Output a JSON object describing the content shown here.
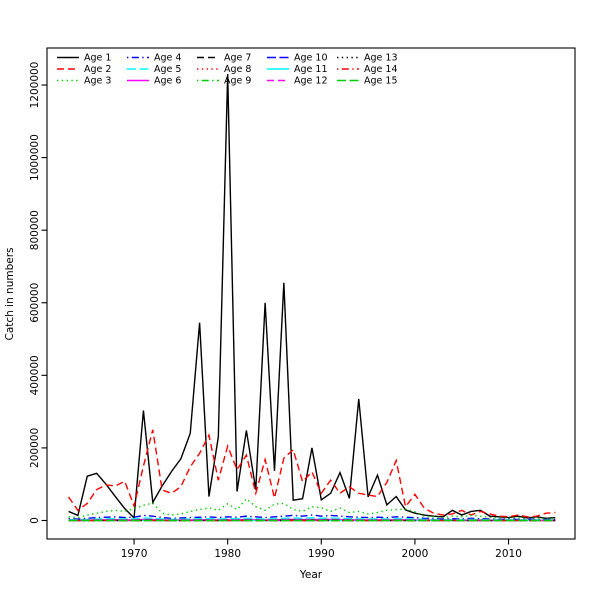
{
  "figure": {
    "title": "",
    "xlabel": "Year",
    "ylabel": "Catch in numbers"
  },
  "chart_data": {
    "type": "line",
    "title": "",
    "xlabel": "Year",
    "ylabel": "Catch in numbers",
    "xlim": [
      1960.7,
      2017.1
    ],
    "ylim": [
      -51000,
      1302000
    ],
    "xticks": [
      1970,
      1980,
      1990,
      2000,
      2010
    ],
    "yticks": [
      0,
      200000,
      400000,
      600000,
      800000,
      1000000,
      1200000
    ],
    "grid": false,
    "legend_position": "top-left",
    "legend_columns": 5,
    "legend_rows": 3,
    "x": [
      1963,
      1964,
      1965,
      1966,
      1967,
      1968,
      1969,
      1970,
      1971,
      1972,
      1973,
      1974,
      1975,
      1976,
      1977,
      1978,
      1979,
      1980,
      1981,
      1982,
      1983,
      1984,
      1985,
      1986,
      1987,
      1988,
      1989,
      1990,
      1991,
      1992,
      1993,
      1994,
      1995,
      1996,
      1997,
      1998,
      1999,
      2000,
      2001,
      2002,
      2003,
      2004,
      2005,
      2006,
      2007,
      2008,
      2009,
      2010,
      2011,
      2012,
      2013,
      2014,
      2015
    ],
    "series": [
      {
        "name": "Age 1",
        "color": "#000000",
        "linetype": "solid",
        "values": [
          25000,
          14000,
          122000,
          130000,
          100000,
          66000,
          33000,
          7000,
          303000,
          50000,
          95000,
          135000,
          170000,
          240000,
          545000,
          66000,
          230000,
          1230000,
          80000,
          248000,
          85000,
          600000,
          137000,
          655000,
          56000,
          60000,
          200000,
          57000,
          75000,
          132000,
          61000,
          335000,
          65000,
          125000,
          43000,
          66000,
          29000,
          20000,
          15000,
          12000,
          10000,
          28000,
          15000,
          25000,
          28000,
          12000,
          10000,
          8000,
          12000,
          7000,
          10000,
          6000,
          8000
        ]
      },
      {
        "name": "Age 2",
        "color": "#FF0000",
        "linetype": "dashed",
        "values": [
          65000,
          28000,
          47000,
          85000,
          98000,
          95000,
          108000,
          40000,
          150000,
          250000,
          84000,
          75000,
          93000,
          148000,
          185000,
          235000,
          111000,
          205000,
          140000,
          180000,
          75000,
          168000,
          62000,
          172000,
          195000,
          107000,
          134000,
          75000,
          111000,
          75000,
          93000,
          75000,
          70000,
          66000,
          105000,
          165000,
          38000,
          72000,
          34000,
          20000,
          15000,
          18000,
          28000,
          15000,
          25000,
          18000,
          12000,
          10000,
          15000,
          10000,
          12000,
          20000,
          22000
        ]
      },
      {
        "name": "Age 3",
        "color": "#00CD00",
        "linetype": "dotted",
        "values": [
          10000,
          8000,
          15000,
          20000,
          25000,
          28000,
          25000,
          33000,
          42000,
          48000,
          20000,
          15000,
          18000,
          25000,
          30000,
          35000,
          28000,
          46000,
          30000,
          60000,
          38000,
          28000,
          45000,
          47000,
          30000,
          25000,
          38000,
          35000,
          25000,
          34000,
          22000,
          25000,
          18000,
          22000,
          28000,
          30000,
          32000,
          24000,
          12000,
          10000,
          8000,
          12000,
          10000,
          14000,
          12000,
          8000,
          7000,
          6000,
          8000,
          6000,
          7000,
          5000,
          6000
        ]
      },
      {
        "name": "Age 4",
        "color": "#0000FF",
        "linetype": "dashdot",
        "values": [
          5000,
          4000,
          6000,
          8000,
          9000,
          10000,
          8000,
          9000,
          14000,
          12000,
          8000,
          6000,
          7000,
          8000,
          9000,
          10000,
          8000,
          10000,
          9000,
          12000,
          10000,
          8000,
          10000,
          12000,
          14000,
          12000,
          15000,
          12000,
          14000,
          12000,
          10000,
          9000,
          8000,
          9000,
          8000,
          10000,
          9000,
          8000,
          6000,
          5000,
          4000,
          5000,
          4000,
          6000,
          5000,
          4000,
          3000,
          4000,
          3000,
          4000,
          3000,
          3000,
          3000
        ]
      },
      {
        "name": "Age 5",
        "color": "#00FFFF",
        "linetype": "longdash",
        "values": [
          2500,
          2000,
          3000,
          4000,
          4500,
          5000,
          4000,
          4500,
          7000,
          6000,
          4000,
          3000,
          3500,
          4000,
          4500,
          5000,
          4000,
          5000,
          4500,
          6000,
          5000,
          4000,
          5000,
          6000,
          7000,
          6000,
          7500,
          6000,
          7000,
          6000,
          5000,
          4500,
          4000,
          4500,
          4000,
          5000,
          4500,
          4000,
          3000,
          2500,
          2000,
          2500,
          2000,
          3000,
          2500,
          2000,
          1500,
          2000,
          1500,
          2000,
          1500,
          1500,
          1500
        ]
      },
      {
        "name": "Age 6",
        "color": "#FF00FF",
        "linetype": "solid",
        "values": [
          1000,
          800,
          1200,
          1600,
          1800,
          2000,
          1600,
          1800,
          2800,
          2400,
          1600,
          1200,
          1400,
          1600,
          1800,
          2000,
          1600,
          2000,
          1800,
          2400,
          2000,
          1600,
          2000,
          2400,
          2800,
          2400,
          3000,
          2400,
          2800,
          2400,
          2000,
          1800,
          1600,
          1800,
          1600,
          2000,
          1800,
          1600,
          1200,
          1000,
          800,
          1000,
          800,
          1200,
          1000,
          800,
          600,
          800,
          600,
          800,
          600,
          600,
          600
        ]
      },
      {
        "name": "Age 7",
        "color": "#000000",
        "linetype": "dashed",
        "values": [
          500,
          400,
          600,
          800,
          900,
          1000,
          800,
          900,
          1400,
          1200,
          800,
          600,
          700,
          800,
          900,
          1000,
          800,
          1000,
          900,
          1200,
          1000,
          800,
          1000,
          1200,
          1400,
          1200,
          1500,
          1200,
          1400,
          1200,
          1000,
          900,
          800,
          900,
          800,
          1000,
          900,
          800,
          600,
          500,
          400,
          500,
          400,
          600,
          500,
          400,
          300,
          400,
          300,
          400,
          300,
          300,
          300
        ]
      },
      {
        "name": "Age 8",
        "color": "#FF0000",
        "linetype": "dotted",
        "values": [
          250,
          200,
          300,
          400,
          450,
          500,
          400,
          450,
          700,
          600,
          400,
          300,
          350,
          400,
          450,
          500,
          400,
          500,
          450,
          600,
          500,
          400,
          500,
          600,
          700,
          600,
          750,
          600,
          700,
          600,
          500,
          450,
          400,
          450,
          400,
          500,
          450,
          400,
          300,
          250,
          200,
          250,
          200,
          300,
          250,
          200,
          150,
          200,
          150,
          200,
          150,
          150,
          150
        ]
      },
      {
        "name": "Age 9",
        "color": "#00CD00",
        "linetype": "dashdot",
        "values": [
          125,
          100,
          150,
          200,
          225,
          250,
          200,
          225,
          350,
          300,
          200,
          150,
          175,
          200,
          225,
          250,
          200,
          250,
          225,
          300,
          250,
          200,
          250,
          300,
          350,
          300,
          375,
          300,
          350,
          300,
          250,
          225,
          200,
          225,
          200,
          250,
          225,
          200,
          150,
          125,
          100,
          125,
          100,
          150,
          125,
          100,
          75,
          100,
          75,
          100,
          75,
          75,
          75
        ]
      },
      {
        "name": "Age 10",
        "color": "#0000FF",
        "linetype": "longdash",
        "values": [
          60,
          50,
          75,
          100,
          110,
          125,
          100,
          110,
          175,
          150,
          100,
          75,
          90,
          100,
          110,
          125,
          100,
          125,
          110,
          150,
          125,
          100,
          125,
          150,
          175,
          150,
          190,
          150,
          175,
          150,
          125,
          110,
          100,
          110,
          100,
          125,
          110,
          100,
          75,
          60,
          50,
          60,
          50,
          75,
          60,
          50,
          40,
          50,
          40,
          50,
          40,
          40,
          40
        ]
      },
      {
        "name": "Age 11",
        "color": "#00FFFF",
        "linetype": "solid",
        "values": [
          30,
          25,
          38,
          50,
          55,
          60,
          50,
          55,
          88,
          75,
          50,
          38,
          45,
          50,
          55,
          60,
          50,
          60,
          55,
          75,
          60,
          50,
          60,
          75,
          88,
          75,
          95,
          75,
          88,
          75,
          60,
          55,
          50,
          55,
          50,
          60,
          55,
          50,
          38,
          30,
          25,
          30,
          25,
          38,
          30,
          25,
          20,
          25,
          20,
          25,
          20,
          20,
          20
        ]
      },
      {
        "name": "Age 12",
        "color": "#FF00FF",
        "linetype": "dashed",
        "values": [
          15,
          12,
          19,
          25,
          28,
          30,
          25,
          28,
          44,
          38,
          25,
          19,
          22,
          25,
          28,
          30,
          25,
          30,
          28,
          38,
          30,
          25,
          30,
          38,
          44,
          38,
          48,
          38,
          44,
          38,
          30,
          28,
          25,
          28,
          25,
          30,
          28,
          25,
          19,
          15,
          12,
          15,
          12,
          19,
          15,
          12,
          10,
          12,
          10,
          12,
          10,
          10,
          10
        ]
      },
      {
        "name": "Age 13",
        "color": "#000000",
        "linetype": "dotted",
        "values": [
          8,
          6,
          9,
          12,
          14,
          15,
          12,
          14,
          22,
          19,
          12,
          9,
          11,
          12,
          14,
          15,
          12,
          15,
          14,
          19,
          15,
          12,
          15,
          19,
          22,
          19,
          24,
          19,
          22,
          19,
          15,
          14,
          12,
          14,
          12,
          15,
          14,
          12,
          9,
          8,
          6,
          8,
          6,
          9,
          8,
          6,
          5,
          6,
          5,
          6,
          5,
          5,
          5
        ]
      },
      {
        "name": "Age 14",
        "color": "#FF0000",
        "linetype": "dashdot",
        "values": [
          4,
          3,
          5,
          6,
          7,
          8,
          6,
          7,
          11,
          9,
          6,
          5,
          5,
          6,
          7,
          8,
          6,
          8,
          7,
          9,
          8,
          6,
          8,
          9,
          11,
          9,
          12,
          9,
          11,
          9,
          8,
          7,
          6,
          7,
          6,
          8,
          7,
          6,
          5,
          4,
          3,
          4,
          3,
          5,
          4,
          3,
          2,
          3,
          2,
          3,
          2,
          2,
          2
        ]
      },
      {
        "name": "Age 15",
        "color": "#00CD00",
        "linetype": "longdash",
        "values": [
          2,
          2,
          2,
          3,
          3,
          4,
          3,
          4,
          5,
          5,
          3,
          2,
          3,
          3,
          4,
          4,
          3,
          4,
          4,
          5,
          4,
          3,
          4,
          5,
          5,
          5,
          6,
          5,
          5,
          5,
          4,
          4,
          3,
          4,
          3,
          4,
          4,
          3,
          2,
          2,
          2,
          2,
          2,
          2,
          2,
          2,
          1,
          2,
          1,
          2,
          1,
          1,
          1
        ]
      }
    ]
  }
}
